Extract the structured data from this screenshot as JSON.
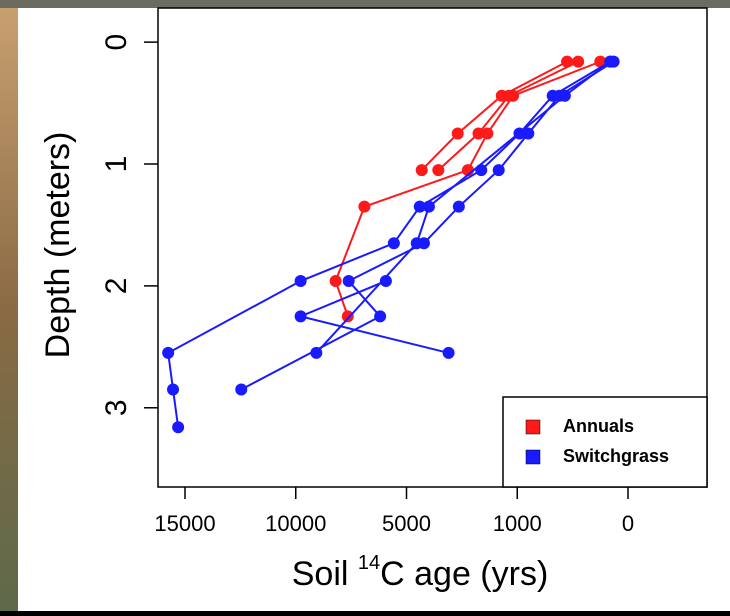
{
  "chart_data": {
    "type": "profile-scatter",
    "xlabel": {
      "prefix": "Soil ",
      "sup": "14",
      "suffix": "C age (yrs)"
    },
    "ylabel": "Depth (meters)",
    "x_scale": "piecewise",
    "xlim": [
      16200,
      -700
    ],
    "xticks": [
      15000,
      10000,
      5000,
      1000,
      0
    ],
    "ylim": [
      3.65,
      -0.28
    ],
    "yticks": [
      0,
      1,
      2,
      3
    ],
    "legend": "bottom-right",
    "series": [
      {
        "name": "Annuals",
        "color": "#ff1a1a",
        "profiles": [
          {
            "x": [
              550,
              1560,
              3150,
              4450
            ],
            "y": [
              0.16,
              0.44,
              0.75,
              1.05
            ]
          },
          {
            "x": [
              450,
              1300,
              2400,
              3850
            ],
            "y": [
              0.16,
              0.44,
              0.75,
              1.05
            ]
          },
          {
            "x": [
              250,
              1150,
              2080,
              2780,
              6900,
              8200,
              7650
            ],
            "y": [
              0.16,
              0.44,
              0.75,
              1.05,
              1.35,
              1.96,
              2.25
            ]
          }
        ]
      },
      {
        "name": "Switchgrass",
        "color": "#1a1aff",
        "profiles": [
          {
            "x": [
              160,
              680,
              980,
              2300,
              4520,
              5570,
              9780,
              15760,
              15540,
              15310
            ],
            "y": [
              0.16,
              0.44,
              0.75,
              1.05,
              1.35,
              1.65,
              1.96,
              2.55,
              2.85,
              3.16
            ]
          },
          {
            "x": [
              130,
              620,
              900,
              1670,
              3110,
              4370,
              7610,
              6190,
              12460
            ],
            "y": [
              0.16,
              0.44,
              0.75,
              1.05,
              1.35,
              1.65,
              1.96,
              2.25,
              2.85
            ]
          },
          {
            "x": [
              160,
              570,
              4190,
              4630,
              9070
            ],
            "y": [
              0.16,
              0.44,
              1.35,
              1.65,
              2.55
            ]
          },
          {
            "x": [
              5930,
              9780,
              3480
            ],
            "y": [
              1.96,
              2.25,
              2.55
            ]
          }
        ]
      }
    ]
  }
}
